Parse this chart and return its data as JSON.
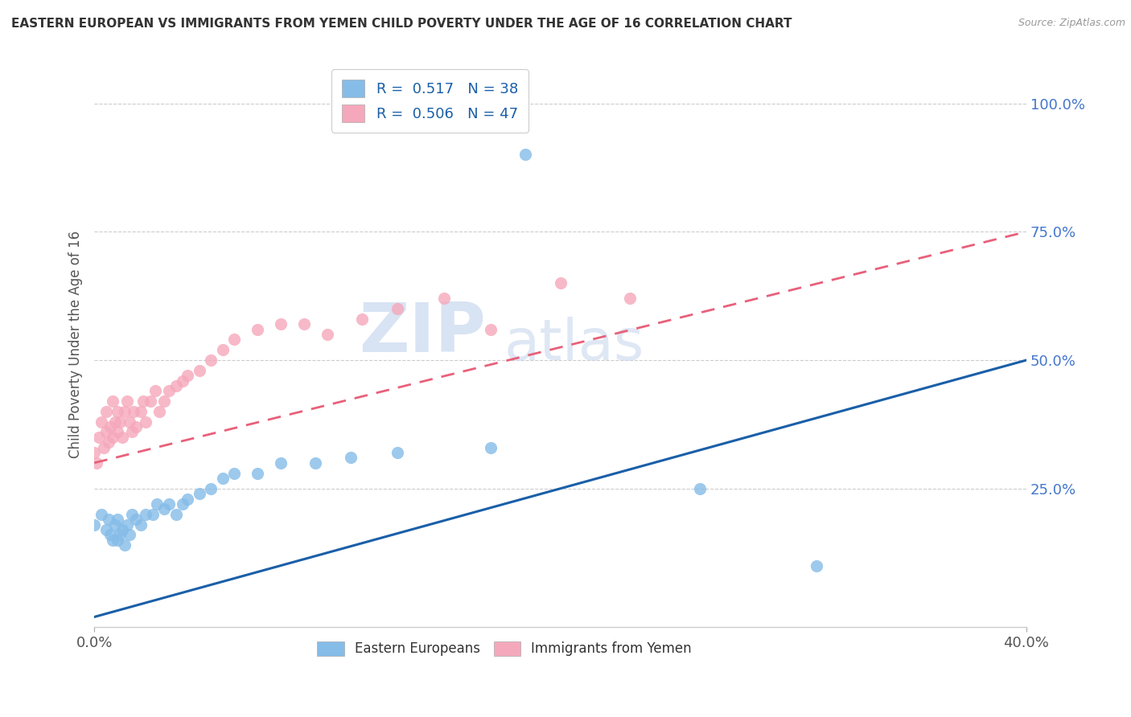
{
  "title": "EASTERN EUROPEAN VS IMMIGRANTS FROM YEMEN CHILD POVERTY UNDER THE AGE OF 16 CORRELATION CHART",
  "source": "Source: ZipAtlas.com",
  "ylabel": "Child Poverty Under the Age of 16",
  "xlim": [
    0.0,
    0.4
  ],
  "ylim": [
    -0.02,
    1.08
  ],
  "ytick_positions": [
    0.25,
    0.5,
    0.75,
    1.0
  ],
  "ytick_labels": [
    "25.0%",
    "50.0%",
    "75.0%",
    "100.0%"
  ],
  "xtick_positions": [
    0.0,
    0.4
  ],
  "xtick_labels": [
    "0.0%",
    "40.0%"
  ],
  "legend_labels": [
    "Eastern Europeans",
    "Immigrants from Yemen"
  ],
  "R_blue": 0.517,
  "N_blue": 38,
  "R_pink": 0.506,
  "N_pink": 47,
  "blue_color": "#85bce8",
  "pink_color": "#f5a8bb",
  "blue_line_color": "#1a5fa8",
  "pink_line_color": "#e8607a",
  "blue_line_y0": 0.0,
  "blue_line_y1": 0.5,
  "pink_line_y0": 0.3,
  "pink_line_y1": 0.75,
  "blue_scatter_x": [
    0.0,
    0.003,
    0.005,
    0.006,
    0.007,
    0.008,
    0.009,
    0.01,
    0.01,
    0.011,
    0.012,
    0.013,
    0.014,
    0.015,
    0.016,
    0.018,
    0.02,
    0.022,
    0.025,
    0.027,
    0.03,
    0.032,
    0.035,
    0.038,
    0.04,
    0.045,
    0.05,
    0.055,
    0.06,
    0.07,
    0.08,
    0.095,
    0.11,
    0.13,
    0.17,
    0.26,
    0.31,
    0.185
  ],
  "blue_scatter_y": [
    0.18,
    0.2,
    0.17,
    0.19,
    0.16,
    0.15,
    0.18,
    0.15,
    0.19,
    0.16,
    0.17,
    0.14,
    0.18,
    0.16,
    0.2,
    0.19,
    0.18,
    0.2,
    0.2,
    0.22,
    0.21,
    0.22,
    0.2,
    0.22,
    0.23,
    0.24,
    0.25,
    0.27,
    0.28,
    0.28,
    0.3,
    0.3,
    0.31,
    0.32,
    0.33,
    0.25,
    0.1,
    0.9
  ],
  "pink_scatter_x": [
    0.0,
    0.001,
    0.002,
    0.003,
    0.004,
    0.005,
    0.005,
    0.006,
    0.007,
    0.008,
    0.008,
    0.009,
    0.01,
    0.01,
    0.011,
    0.012,
    0.013,
    0.014,
    0.015,
    0.016,
    0.017,
    0.018,
    0.02,
    0.021,
    0.022,
    0.024,
    0.026,
    0.028,
    0.03,
    0.032,
    0.035,
    0.038,
    0.04,
    0.045,
    0.05,
    0.055,
    0.06,
    0.07,
    0.08,
    0.09,
    0.1,
    0.115,
    0.13,
    0.15,
    0.17,
    0.2,
    0.23
  ],
  "pink_scatter_y": [
    0.32,
    0.3,
    0.35,
    0.38,
    0.33,
    0.36,
    0.4,
    0.34,
    0.37,
    0.35,
    0.42,
    0.38,
    0.36,
    0.4,
    0.38,
    0.35,
    0.4,
    0.42,
    0.38,
    0.36,
    0.4,
    0.37,
    0.4,
    0.42,
    0.38,
    0.42,
    0.44,
    0.4,
    0.42,
    0.44,
    0.45,
    0.46,
    0.47,
    0.48,
    0.5,
    0.52,
    0.54,
    0.56,
    0.57,
    0.57,
    0.55,
    0.58,
    0.6,
    0.62,
    0.56,
    0.65,
    0.62
  ]
}
